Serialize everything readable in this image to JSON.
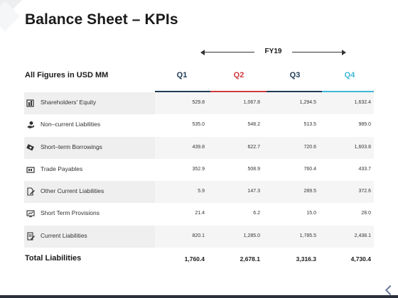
{
  "title": "Balance Sheet – KPIs",
  "fiscal_year": "FY19",
  "header_label": "All Figures in USD MM",
  "quarters": [
    {
      "label": "Q1",
      "color": "#1f3b57"
    },
    {
      "label": "Q2",
      "color": "#d0393e"
    },
    {
      "label": "Q3",
      "color": "#1f3b57"
    },
    {
      "label": "Q4",
      "color": "#3fb8d6"
    }
  ],
  "rows": [
    {
      "label": "Shareholders' Equity",
      "icon": "equity-icon",
      "values": [
        "529.8",
        "1,067.8",
        "1,294.5",
        "1,632.4"
      ]
    },
    {
      "label": "Non–current Liabilities",
      "icon": "hand-coin-icon",
      "values": [
        "535.0",
        "548.2",
        "513.5",
        "989.0"
      ]
    },
    {
      "label": "Short–term Borrowings",
      "icon": "money-stack-icon",
      "values": [
        "439.8",
        "622.7",
        "720.6",
        "1,603.8"
      ]
    },
    {
      "label": "Trade Payables",
      "icon": "wallet-icon",
      "values": [
        "352.9",
        "508.9",
        "760.4",
        "433.7"
      ]
    },
    {
      "label": "Other Current Liabilities",
      "icon": "document-edit-icon",
      "values": [
        "5.9",
        "147.3",
        "289.5",
        "372.6"
      ]
    },
    {
      "label": "Short Term Provisions",
      "icon": "monitor-chart-icon",
      "values": [
        "21.4",
        "6.2",
        "15.0",
        "28.0"
      ]
    },
    {
      "label": "Current Liabilities",
      "icon": "document-pen-icon",
      "values": [
        "820.1",
        "1,285.0",
        "1,785.5",
        "2,438.1"
      ]
    }
  ],
  "total": {
    "label": "Total Liabilities",
    "values": [
      "1,760.4",
      "2,678.1",
      "3,316.3",
      "4,730.4"
    ]
  }
}
